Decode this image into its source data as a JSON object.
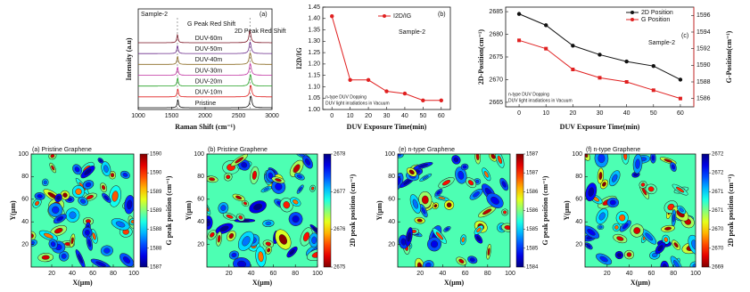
{
  "chart_data": [
    {
      "type": "spectra",
      "panel": "(a)",
      "title": "Sample-2",
      "xlabel": "Raman Shift (cm⁻¹)",
      "ylabel": "Intensity (a.u)",
      "xlim": [
        1000,
        3000
      ],
      "xticks": [
        1000,
        1500,
        2000,
        2500,
        3000
      ],
      "annotations": [
        "G Peak Red Shift",
        "2D Peak Red Shift"
      ],
      "series": [
        {
          "name": "DUV-60m",
          "color": "#7a1020",
          "g_peak": 1586,
          "d2_peak": 2670
        },
        {
          "name": "DUV-50m",
          "color": "#6a2a8a",
          "g_peak": 1587,
          "d2_peak": 2673
        },
        {
          "name": "DUV-40m",
          "color": "#8a6a20",
          "g_peak": 1588,
          "d2_peak": 2674
        },
        {
          "name": "DUV-30m",
          "color": "#c030a0",
          "g_peak": 1588,
          "d2_peak": 2675
        },
        {
          "name": "DUV-20m",
          "color": "#20a020",
          "g_peak": 1589,
          "d2_peak": 2677
        },
        {
          "name": "DUV-10m",
          "color": "#e02020",
          "g_peak": 1592,
          "d2_peak": 2682
        },
        {
          "name": "Pristine",
          "color": "#111111",
          "g_peak": 1593,
          "d2_peak": 2684
        }
      ]
    },
    {
      "type": "line",
      "panel": "(b)",
      "title": "Sample-2",
      "xlabel": "DUV Exposure Time(min)",
      "ylabel": "I2D/IG",
      "annotations": [
        "n-type DUV Dopping",
        "DUV light irradiations in Vacuum"
      ],
      "x": [
        0,
        10,
        20,
        30,
        40,
        50,
        60
      ],
      "xlim": [
        -5,
        65
      ],
      "xticks": [
        0,
        10,
        20,
        30,
        40,
        50,
        60
      ],
      "ylim": [
        1.0,
        1.45
      ],
      "yticks": [
        {
          "value": 1,
          "label": "1.00"
        },
        1.05,
        {
          "value": 1.1,
          "label": "1.10"
        },
        1.15,
        {
          "value": 1.2,
          "label": "1.20"
        },
        1.25,
        {
          "value": 1.3,
          "label": "1.30"
        },
        1.35,
        {
          "value": 1.4,
          "label": "1.40"
        },
        1.45
      ],
      "series": [
        {
          "name": "I2D/IG",
          "color": "#e02020",
          "values": [
            1.41,
            1.13,
            1.13,
            1.08,
            1.07,
            1.04,
            1.04
          ]
        }
      ]
    },
    {
      "type": "dual",
      "panel": "(c)",
      "title": "Sample-2",
      "xlabel": "DUV Exposure Time(min)",
      "ylabel": "2D-Position(cm⁻¹)",
      "y2label": "G-Position(cm⁻¹)",
      "annotations": [
        "n-type DUV Dopping",
        "DUV light irradiations in Vacuum"
      ],
      "x": [
        0,
        10,
        20,
        30,
        40,
        50,
        60
      ],
      "xlim": [
        -5,
        65
      ],
      "xticks": [
        0,
        10,
        20,
        30,
        40,
        50,
        60
      ],
      "ylim": [
        2664,
        2686
      ],
      "yticks": [
        2665,
        2670,
        2675,
        2680,
        2685
      ],
      "y2lim": [
        1585,
        1597
      ],
      "y2ticks": [
        1586,
        1588,
        1590,
        1592,
        1594,
        1596
      ],
      "series": [
        {
          "name": "2D Position",
          "color": "#111111",
          "values": [
            2684.5,
            2682,
            2677.5,
            2675.5,
            2674,
            2673,
            2670
          ]
        },
        {
          "name": "G Position",
          "color": "#e02020",
          "axis": "y2",
          "values": [
            1593,
            1592,
            1589.5,
            1588.5,
            1588,
            1587,
            1586
          ]
        }
      ]
    },
    {
      "type": "contour",
      "title": "(a) Pristine Graphene",
      "xlabel": "X(μm)",
      "ylabel": "Y(μm)",
      "xlim": [
        0,
        100
      ],
      "xticks": [
        20,
        40,
        60,
        80,
        100
      ],
      "ylim": [
        0,
        100
      ],
      "yticks": [
        20,
        40,
        60,
        80,
        100
      ],
      "colorbar": {
        "label": "G peak position (cm⁻¹)",
        "lim": [
          1587,
          1590
        ],
        "reversed": false,
        "ticks": [
          {
            "value": 1587,
            "label": "1587"
          },
          {
            "value": 1587.5,
            "label": "1588"
          },
          {
            "value": 1588,
            "label": "1588"
          },
          {
            "value": 1588.5,
            "label": "1589"
          },
          {
            "value": 1589,
            "label": "1589"
          },
          {
            "value": 1589.5,
            "label": "1590"
          },
          {
            "value": 1590,
            "label": "1590"
          }
        ]
      }
    },
    {
      "type": "contour",
      "title": "(b) Pristine Graphene",
      "xlabel": "X(μm)",
      "ylabel": "Y(μm)",
      "xlim": [
        0,
        100
      ],
      "xticks": [
        20,
        40,
        60,
        80,
        100
      ],
      "ylim": [
        0,
        100
      ],
      "yticks": [
        20,
        40,
        60,
        80,
        100
      ],
      "colorbar": {
        "label": "2D peak position (cm⁻¹)",
        "lim": [
          2675,
          2678
        ],
        "reversed": true,
        "ticks": [
          2675,
          2676,
          2677,
          2678
        ]
      }
    },
    {
      "type": "contour",
      "title": "(e) n-type Graphene",
      "xlabel": "X(μm)",
      "ylabel": "Y(μm)",
      "xlim": [
        0,
        100
      ],
      "xticks": [
        20,
        40,
        60,
        80,
        100
      ],
      "ylim": [
        0,
        100
      ],
      "yticks": [
        20,
        40,
        60,
        80,
        100
      ],
      "colorbar": {
        "label": "G peak position (cm⁻¹)",
        "lim": [
          1584,
          1587
        ],
        "reversed": false,
        "ticks": [
          {
            "value": 1584,
            "label": "1584"
          },
          {
            "value": 1584.5,
            "label": "1585"
          },
          {
            "value": 1585,
            "label": "1585"
          },
          {
            "value": 1585.5,
            "label": "1586"
          },
          {
            "value": 1586,
            "label": "1586"
          },
          {
            "value": 1586.5,
            "label": "1587"
          },
          {
            "value": 1587,
            "label": "1587"
          }
        ]
      }
    },
    {
      "type": "contour",
      "title": "(f) n-type Graphene",
      "xlabel": "X(μm)",
      "ylabel": "Y(μm)",
      "xlim": [
        0,
        100
      ],
      "xticks": [
        20,
        40,
        60,
        80,
        100
      ],
      "ylim": [
        0,
        100
      ],
      "yticks": [
        20,
        40,
        60,
        80,
        100
      ],
      "colorbar": {
        "label": "2D peak position (cm⁻¹)",
        "lim": [
          2669,
          2672
        ],
        "reversed": true,
        "ticks": [
          {
            "value": 2669,
            "label": "2669"
          },
          {
            "value": 2669.5,
            "label": "2670"
          },
          {
            "value": 2670,
            "label": "2670"
          },
          {
            "value": 2670.5,
            "label": "2671"
          },
          {
            "value": 2671,
            "label": "2671"
          },
          {
            "value": 2671.5,
            "label": "2672"
          },
          {
            "value": 2672,
            "label": "2672"
          }
        ]
      }
    }
  ]
}
